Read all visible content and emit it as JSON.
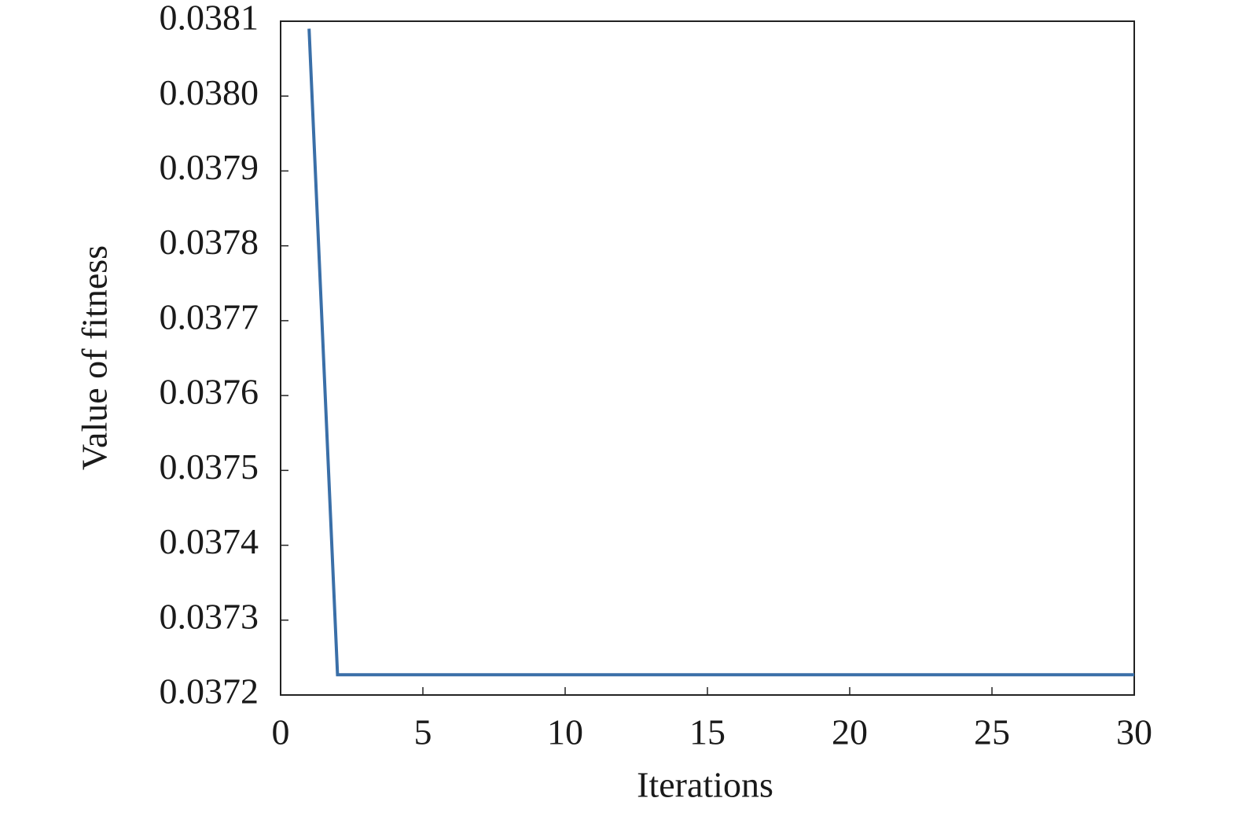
{
  "chart_data": {
    "type": "line",
    "x_label": "Iterations",
    "y_label": "Value of fitness",
    "x": [
      1,
      2,
      3,
      4,
      5,
      6,
      7,
      8,
      9,
      10,
      11,
      12,
      13,
      14,
      15,
      16,
      17,
      18,
      19,
      20,
      21,
      22,
      23,
      24,
      25,
      26,
      27,
      28,
      29,
      30
    ],
    "series": [
      {
        "color": "#3a6fa8",
        "values": [
          0.03809,
          0.037227,
          0.037227,
          0.037227,
          0.037227,
          0.037227,
          0.037227,
          0.037227,
          0.037227,
          0.037227,
          0.037227,
          0.037227,
          0.037227,
          0.037227,
          0.037227,
          0.037227,
          0.037227,
          0.037227,
          0.037227,
          0.037227,
          0.037227,
          0.037227,
          0.037227,
          0.037227,
          0.037227,
          0.037227,
          0.037227,
          0.037227,
          0.037227,
          0.037227
        ]
      }
    ],
    "xlim": [
      0,
      30
    ],
    "xticks": [
      0,
      5,
      10,
      15,
      20,
      25,
      30
    ],
    "ylim": [
      0.0372,
      0.0381
    ],
    "yticks": [
      0.0372,
      0.0373,
      0.0374,
      0.0375,
      0.0376,
      0.0377,
      0.0378,
      0.0379,
      {
        "value": 0.038,
        "label": "0.0380"
      },
      0.0381
    ],
    "grid": false
  }
}
